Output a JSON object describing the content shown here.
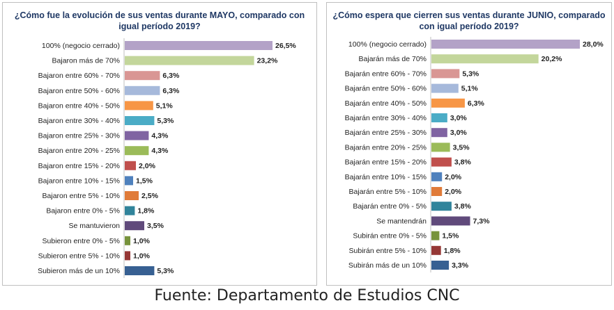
{
  "source": "Fuente: Departamento de Estudios CNC",
  "chart_data": [
    {
      "type": "bar",
      "orientation": "horizontal",
      "title": "¿Cómo fue la evolución de sus ventas durante MAYO, comparado con igual período 2019?",
      "categories": [
        "100% (negocio cerrado)",
        "Bajaron más de 70%",
        "Bajaron entre 60% - 70%",
        "Bajaron entre 50% - 60%",
        "Bajaron entre 40% - 50%",
        "Bajaron entre 30% - 40%",
        "Bajaron entre 25% - 30%",
        "Bajaron entre 20% - 25%",
        "Bajaron entre 15% - 20%",
        "Bajaron entre 10% - 15%",
        "Bajaron entre 5% - 10%",
        "Bajaron entre 0% - 5%",
        "Se mantuvieron",
        "Subieron entre 0% - 5%",
        "Subieron entre 5% - 10%",
        "Subieron más de un 10%"
      ],
      "values": [
        26.5,
        23.2,
        6.3,
        6.3,
        5.1,
        5.3,
        4.3,
        4.3,
        2.0,
        1.5,
        2.5,
        1.8,
        3.5,
        1.0,
        1.0,
        5.3
      ],
      "value_labels": [
        "26,5%",
        "23,2%",
        "6,3%",
        "6,3%",
        "5,1%",
        "5,3%",
        "4,3%",
        "4,3%",
        "2,0%",
        "1,5%",
        "2,5%",
        "1,8%",
        "3,5%",
        "1,0%",
        "1,0%",
        "5,3%"
      ],
      "colors": [
        "#b3a2c7",
        "#c3d69b",
        "#d99694",
        "#a6b9db",
        "#f79646",
        "#4bacc6",
        "#8064a2",
        "#9bbb59",
        "#c0504d",
        "#4f81bd",
        "#e07b39",
        "#31849b",
        "#604a7b",
        "#77933c",
        "#953735",
        "#376092"
      ],
      "xlim": [
        0,
        28.5
      ],
      "grid": false
    },
    {
      "type": "bar",
      "orientation": "horizontal",
      "title": "¿Cómo espera que cierren sus ventas durante JUNIO, comparado con igual período 2019?",
      "categories": [
        "100% (negocio cerrado)",
        "Bajarán más de 70%",
        "Bajarán entre 60% - 70%",
        "Bajarán entre 50% - 60%",
        "Bajarán entre 40% - 50%",
        "Bajarán entre 30% - 40%",
        "Bajarán entre 25% - 30%",
        "Bajarán entre 20% - 25%",
        "Bajarán entre 15% - 20%",
        "Bajarán entre 10% - 15%",
        "Bajarán entre 5% - 10%",
        "Bajarán entre 0% - 5%",
        "Se mantendrán",
        "Subirán entre 0% - 5%",
        "Subirán entre 5% - 10%",
        "Subirán más de un 10%"
      ],
      "values": [
        28.0,
        20.2,
        5.3,
        5.1,
        6.3,
        3.0,
        3.0,
        3.5,
        3.8,
        2.0,
        2.0,
        3.8,
        7.3,
        1.5,
        1.8,
        3.3
      ],
      "value_labels": [
        "28,0%",
        "20,2%",
        "5,3%",
        "5,1%",
        "6,3%",
        "3,0%",
        "3,0%",
        "3,5%",
        "3,8%",
        "2,0%",
        "2,0%",
        "3,8%",
        "7,3%",
        "1,5%",
        "1,8%",
        "3,3%"
      ],
      "colors": [
        "#b3a2c7",
        "#c3d69b",
        "#d99694",
        "#a6b9db",
        "#f79646",
        "#4bacc6",
        "#8064a2",
        "#9bbb59",
        "#c0504d",
        "#4f81bd",
        "#e07b39",
        "#31849b",
        "#604a7b",
        "#77933c",
        "#953735",
        "#376092"
      ],
      "xlim": [
        0,
        28.0
      ],
      "grid": false
    }
  ]
}
